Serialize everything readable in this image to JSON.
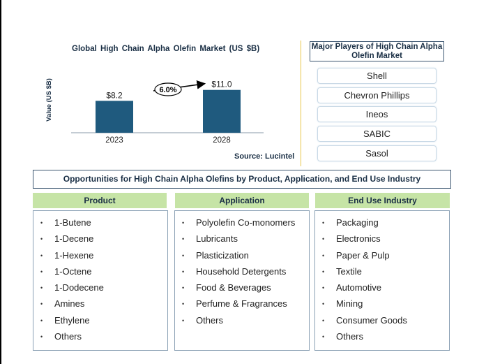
{
  "chart": {
    "title": "Global High Chain Alpha Olefin Market (US $B)",
    "source": "Source: Lucintel"
  },
  "chart_data": {
    "type": "bar",
    "categories": [
      "2023",
      "2028"
    ],
    "values": [
      8.2,
      11.0
    ],
    "value_labels": [
      "$8.2",
      "$11.0"
    ],
    "ylabel": "Value (US $B)",
    "ylim": [
      0,
      14
    ],
    "cagr_label": "6.0%",
    "bar_color": "#1f5a7e",
    "grid": false
  },
  "players": {
    "title": "Major Players of High Chain Alpha Olefin Market",
    "items": [
      "Shell",
      "Chevron Phillips",
      "Ineos",
      "SABIC",
      "Sasol"
    ]
  },
  "opportunities": {
    "title": "Opportunities for High Chain Alpha Olefins by Product, Application, and End Use Industry",
    "columns": [
      {
        "heading": "Product",
        "items": [
          "1-Butene",
          "1-Decene",
          "1-Hexene",
          "1-Octene",
          "1-Dodecene",
          "Amines",
          "Ethylene",
          "Others"
        ]
      },
      {
        "heading": "Application",
        "items": [
          "Polyolefin Co-monomers",
          "Lubricants",
          "Plasticization",
          "Household Detergents",
          "Food & Beverages",
          "Perfume & Fragrances",
          "Others"
        ]
      },
      {
        "heading": "End Use Industry",
        "items": [
          "Packaging",
          "Electronics",
          "Paper & Pulp",
          "Textile",
          "Automotive",
          "Mining",
          "Consumer Goods",
          "Others"
        ]
      }
    ]
  },
  "colors": {
    "header_green": "#c6e4a6",
    "title_navy": "#1a2f45",
    "divider_gold": "#e8c64a"
  }
}
